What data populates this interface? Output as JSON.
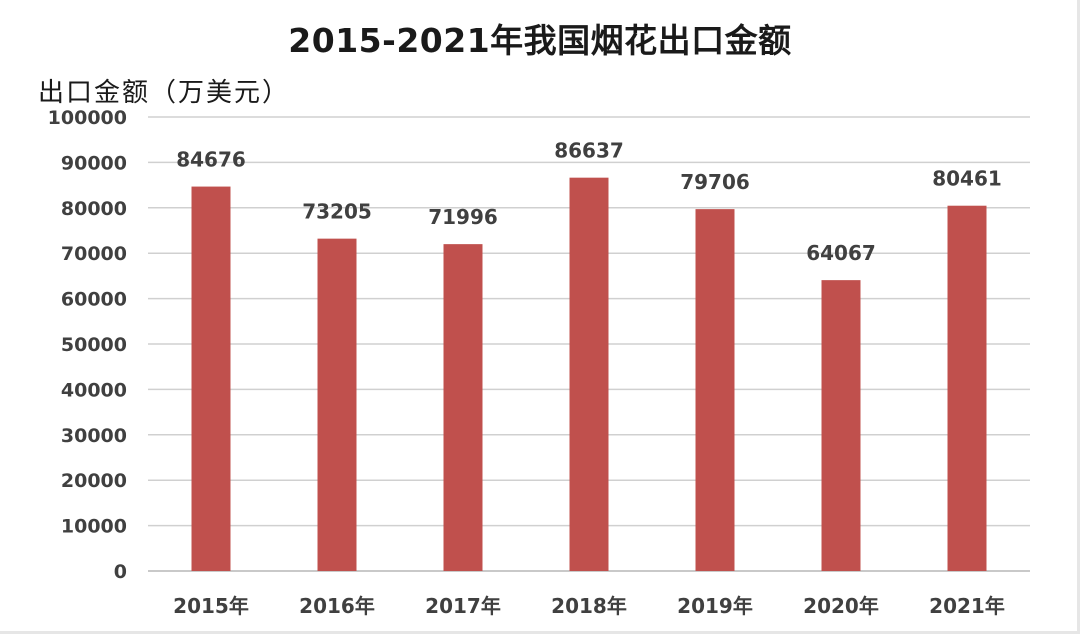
{
  "chart_data": {
    "type": "bar",
    "title": "2015-2021年我国烟花出口金额",
    "ylabel": "出口金额（万美元）",
    "xlabel": "",
    "categories": [
      "2015年",
      "2016年",
      "2017年",
      "2018年",
      "2019年",
      "2020年",
      "2021年"
    ],
    "values": [
      84676,
      73205,
      71996,
      86637,
      79706,
      64067,
      80461
    ],
    "data_labels": [
      "84676",
      "73205",
      "71996",
      "86637",
      "79706",
      "64067",
      "80461"
    ],
    "ylim": [
      0,
      100000
    ],
    "yticks": [
      "0",
      "10000",
      "20000",
      "30000",
      "40000",
      "50000",
      "60000",
      "70000",
      "80000",
      "90000",
      "100000"
    ],
    "grid": true,
    "legend": "none",
    "bar_color": "#c0504d",
    "grid_color": "#d0d0d0"
  }
}
